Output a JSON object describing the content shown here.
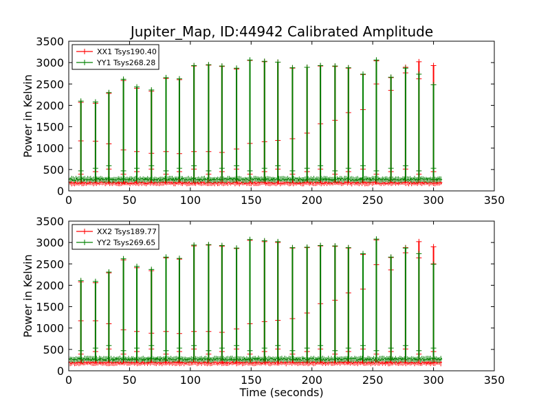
{
  "figure": {
    "title": "Jupiter_Map, ID:44942 Calibrated Amplitude"
  },
  "chart_data": [
    {
      "type": "line",
      "title": "Jupiter_Map, ID:44942 Calibrated Amplitude",
      "xlabel": "",
      "ylabel": "Power in Kelvin",
      "xlim": [
        0,
        350
      ],
      "ylim": [
        0,
        3500
      ],
      "xticks": [
        0,
        50,
        100,
        150,
        200,
        250,
        300,
        350
      ],
      "yticks": [
        0,
        500,
        1000,
        1500,
        2000,
        2500,
        3000,
        3500
      ],
      "grid": false,
      "legend_position": "top-left",
      "x_end": 307,
      "series": [
        {
          "name": "XX1 Tsys190.40",
          "color": "#ff0000",
          "baseline": 190,
          "peaks": [
            {
              "x": 10,
              "y": 2070
            },
            {
              "x": 22,
              "y": 2050
            },
            {
              "x": 33,
              "y": 2280
            },
            {
              "x": 45,
              "y": 2580
            },
            {
              "x": 56,
              "y": 2400
            },
            {
              "x": 68,
              "y": 2330
            },
            {
              "x": 80,
              "y": 2630
            },
            {
              "x": 91,
              "y": 2600
            },
            {
              "x": 103,
              "y": 2920
            },
            {
              "x": 115,
              "y": 2940
            },
            {
              "x": 126,
              "y": 2910
            },
            {
              "x": 138,
              "y": 2850
            },
            {
              "x": 149,
              "y": 3050
            },
            {
              "x": 161,
              "y": 3020
            },
            {
              "x": 172,
              "y": 3010
            },
            {
              "x": 184,
              "y": 2870
            },
            {
              "x": 196,
              "y": 2890
            },
            {
              "x": 207,
              "y": 2920
            },
            {
              "x": 219,
              "y": 2910
            },
            {
              "x": 230,
              "y": 2870
            },
            {
              "x": 242,
              "y": 2720
            },
            {
              "x": 253,
              "y": 3040
            },
            {
              "x": 265,
              "y": 2650
            },
            {
              "x": 277,
              "y": 2890
            },
            {
              "x": 288,
              "y": 3020
            },
            {
              "x": 300,
              "y": 2930
            }
          ],
          "mid_points": [
            {
              "x": 10,
              "y": 1170
            },
            {
              "x": 22,
              "y": 1160
            },
            {
              "x": 33,
              "y": 1100
            },
            {
              "x": 45,
              "y": 960
            },
            {
              "x": 56,
              "y": 920
            },
            {
              "x": 68,
              "y": 880
            },
            {
              "x": 80,
              "y": 920
            },
            {
              "x": 91,
              "y": 870
            },
            {
              "x": 103,
              "y": 920
            },
            {
              "x": 115,
              "y": 920
            },
            {
              "x": 126,
              "y": 900
            },
            {
              "x": 138,
              "y": 980
            },
            {
              "x": 149,
              "y": 1110
            },
            {
              "x": 161,
              "y": 1150
            },
            {
              "x": 172,
              "y": 1180
            },
            {
              "x": 184,
              "y": 1220
            },
            {
              "x": 196,
              "y": 1350
            },
            {
              "x": 207,
              "y": 1570
            },
            {
              "x": 219,
              "y": 1650
            },
            {
              "x": 230,
              "y": 1830
            },
            {
              "x": 242,
              "y": 1900
            },
            {
              "x": 253,
              "y": 2500
            },
            {
              "x": 265,
              "y": 2350
            },
            {
              "x": 277,
              "y": 2760
            },
            {
              "x": 288,
              "y": 2620
            },
            {
              "x": 300,
              "y": 2480
            }
          ]
        },
        {
          "name": "YY1 Tsys268.28",
          "color": "#008000",
          "baseline": 268,
          "peaks": [
            {
              "x": 10,
              "y": 2100
            },
            {
              "x": 22,
              "y": 2080
            },
            {
              "x": 33,
              "y": 2300
            },
            {
              "x": 45,
              "y": 2610
            },
            {
              "x": 56,
              "y": 2430
            },
            {
              "x": 68,
              "y": 2360
            },
            {
              "x": 80,
              "y": 2650
            },
            {
              "x": 91,
              "y": 2620
            },
            {
              "x": 103,
              "y": 2930
            },
            {
              "x": 115,
              "y": 2950
            },
            {
              "x": 126,
              "y": 2920
            },
            {
              "x": 138,
              "y": 2870
            },
            {
              "x": 149,
              "y": 3060
            },
            {
              "x": 161,
              "y": 3030
            },
            {
              "x": 172,
              "y": 3010
            },
            {
              "x": 184,
              "y": 2880
            },
            {
              "x": 196,
              "y": 2890
            },
            {
              "x": 207,
              "y": 2930
            },
            {
              "x": 219,
              "y": 2920
            },
            {
              "x": 230,
              "y": 2880
            },
            {
              "x": 242,
              "y": 2730
            },
            {
              "x": 253,
              "y": 3060
            },
            {
              "x": 265,
              "y": 2660
            },
            {
              "x": 277,
              "y": 2870
            },
            {
              "x": 288,
              "y": 2730
            },
            {
              "x": 300,
              "y": 2480
            }
          ]
        }
      ]
    },
    {
      "type": "line",
      "title": "",
      "xlabel": "Time (seconds)",
      "ylabel": "Power in Kelvin",
      "xlim": [
        0,
        350
      ],
      "ylim": [
        0,
        3500
      ],
      "xticks": [
        0,
        50,
        100,
        150,
        200,
        250,
        300,
        350
      ],
      "yticks": [
        0,
        500,
        1000,
        1500,
        2000,
        2500,
        3000,
        3500
      ],
      "grid": false,
      "legend_position": "top-left",
      "x_end": 307,
      "series": [
        {
          "name": "XX2 Tsys189.77",
          "color": "#ff0000",
          "baseline": 190,
          "peaks": [
            {
              "x": 10,
              "y": 2080
            },
            {
              "x": 22,
              "y": 2060
            },
            {
              "x": 33,
              "y": 2290
            },
            {
              "x": 45,
              "y": 2590
            },
            {
              "x": 56,
              "y": 2410
            },
            {
              "x": 68,
              "y": 2340
            },
            {
              "x": 80,
              "y": 2640
            },
            {
              "x": 91,
              "y": 2610
            },
            {
              "x": 103,
              "y": 2920
            },
            {
              "x": 115,
              "y": 2940
            },
            {
              "x": 126,
              "y": 2910
            },
            {
              "x": 138,
              "y": 2860
            },
            {
              "x": 149,
              "y": 3050
            },
            {
              "x": 161,
              "y": 3020
            },
            {
              "x": 172,
              "y": 3000
            },
            {
              "x": 184,
              "y": 2870
            },
            {
              "x": 196,
              "y": 2880
            },
            {
              "x": 207,
              "y": 2920
            },
            {
              "x": 219,
              "y": 2910
            },
            {
              "x": 230,
              "y": 2870
            },
            {
              "x": 242,
              "y": 2720
            },
            {
              "x": 253,
              "y": 3060
            },
            {
              "x": 265,
              "y": 2650
            },
            {
              "x": 277,
              "y": 2880
            },
            {
              "x": 288,
              "y": 3020
            },
            {
              "x": 300,
              "y": 2900
            }
          ],
          "mid_points": [
            {
              "x": 10,
              "y": 1170
            },
            {
              "x": 22,
              "y": 1170
            },
            {
              "x": 33,
              "y": 1100
            },
            {
              "x": 45,
              "y": 960
            },
            {
              "x": 56,
              "y": 920
            },
            {
              "x": 68,
              "y": 880
            },
            {
              "x": 80,
              "y": 920
            },
            {
              "x": 91,
              "y": 870
            },
            {
              "x": 103,
              "y": 920
            },
            {
              "x": 115,
              "y": 920
            },
            {
              "x": 126,
              "y": 900
            },
            {
              "x": 138,
              "y": 980
            },
            {
              "x": 149,
              "y": 1100
            },
            {
              "x": 161,
              "y": 1150
            },
            {
              "x": 172,
              "y": 1180
            },
            {
              "x": 184,
              "y": 1220
            },
            {
              "x": 196,
              "y": 1350
            },
            {
              "x": 207,
              "y": 1570
            },
            {
              "x": 219,
              "y": 1650
            },
            {
              "x": 230,
              "y": 1820
            },
            {
              "x": 242,
              "y": 1910
            },
            {
              "x": 253,
              "y": 2480
            },
            {
              "x": 265,
              "y": 2360
            },
            {
              "x": 277,
              "y": 2760
            },
            {
              "x": 288,
              "y": 2640
            },
            {
              "x": 300,
              "y": 2500
            }
          ]
        },
        {
          "name": "YY2 Tsys269.65",
          "color": "#008000",
          "baseline": 270,
          "peaks": [
            {
              "x": 10,
              "y": 2110
            },
            {
              "x": 22,
              "y": 2090
            },
            {
              "x": 33,
              "y": 2310
            },
            {
              "x": 45,
              "y": 2620
            },
            {
              "x": 56,
              "y": 2440
            },
            {
              "x": 68,
              "y": 2370
            },
            {
              "x": 80,
              "y": 2660
            },
            {
              "x": 91,
              "y": 2630
            },
            {
              "x": 103,
              "y": 2940
            },
            {
              "x": 115,
              "y": 2950
            },
            {
              "x": 126,
              "y": 2930
            },
            {
              "x": 138,
              "y": 2870
            },
            {
              "x": 149,
              "y": 3070
            },
            {
              "x": 161,
              "y": 3040
            },
            {
              "x": 172,
              "y": 3020
            },
            {
              "x": 184,
              "y": 2880
            },
            {
              "x": 196,
              "y": 2890
            },
            {
              "x": 207,
              "y": 2930
            },
            {
              "x": 219,
              "y": 2920
            },
            {
              "x": 230,
              "y": 2880
            },
            {
              "x": 242,
              "y": 2740
            },
            {
              "x": 253,
              "y": 3080
            },
            {
              "x": 265,
              "y": 2660
            },
            {
              "x": 277,
              "y": 2870
            },
            {
              "x": 288,
              "y": 2740
            },
            {
              "x": 300,
              "y": 2490
            }
          ]
        }
      ]
    }
  ]
}
